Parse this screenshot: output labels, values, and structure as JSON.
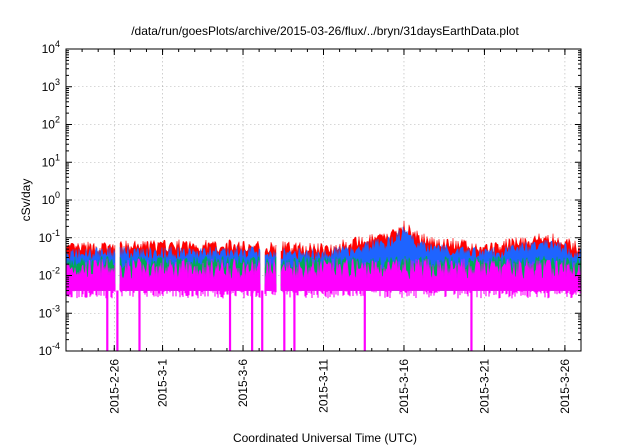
{
  "chart_data": {
    "type": "area",
    "title": "/data/run/goesPlots/archive/2015-03-26/flux/../bryn/31daysEarthData.plot",
    "xlabel": "Coordinated Universal Time (UTC)",
    "ylabel": "cSv/day",
    "y_scale": "log",
    "ylim": [
      0.0001,
      10000
    ],
    "xlim": [
      "2015-02-23",
      "2015-03-27"
    ],
    "grid": true,
    "y_ticks": [
      {
        "base": "10",
        "exp": "-4"
      },
      {
        "base": "10",
        "exp": "-3"
      },
      {
        "base": "10",
        "exp": "-2"
      },
      {
        "base": "10",
        "exp": "-1"
      },
      {
        "base": "10",
        "exp": "0"
      },
      {
        "base": "10",
        "exp": "1"
      },
      {
        "base": "10",
        "exp": "2"
      },
      {
        "base": "10",
        "exp": "3"
      },
      {
        "base": "10",
        "exp": "4"
      }
    ],
    "x_ticks": [
      "2015-2-26",
      "2015-3-1",
      "2015-3-6",
      "2015-3-11",
      "2015-3-16",
      "2015-3-21",
      "2015-3-26"
    ],
    "series_colors": [
      "#ff0000",
      "#1e64ff",
      "#00aa55",
      "#ff00ff"
    ],
    "series": [
      {
        "color": "#ff0000",
        "typical": 0.05,
        "x": [
          "2015-02-23",
          "2015-02-26",
          "2015-03-01",
          "2015-03-06",
          "2015-03-11",
          "2015-03-15",
          "2015-03-16",
          "2015-03-17",
          "2015-03-21",
          "2015-03-25",
          "2015-03-27"
        ],
        "values": [
          0.05,
          0.055,
          0.06,
          0.06,
          0.05,
          0.1,
          0.2,
          0.09,
          0.05,
          0.1,
          0.05
        ]
      },
      {
        "color": "#1e64ff",
        "typical": 0.035,
        "x": [
          "2015-02-23",
          "2015-02-26",
          "2015-03-01",
          "2015-03-06",
          "2015-03-11",
          "2015-03-15",
          "2015-03-16",
          "2015-03-17",
          "2015-03-21",
          "2015-03-25",
          "2015-03-27"
        ],
        "values": [
          0.035,
          0.04,
          0.04,
          0.04,
          0.035,
          0.07,
          0.14,
          0.06,
          0.035,
          0.07,
          0.035
        ]
      },
      {
        "color": "#00aa55",
        "typical": 0.022,
        "x": [
          "2015-02-23",
          "2015-03-27"
        ],
        "values": [
          0.022,
          0.022
        ]
      },
      {
        "color": "#ff00ff",
        "typical": 0.015,
        "x": [
          "2015-02-23",
          "2015-03-27"
        ],
        "values": [
          0.015,
          0.015
        ]
      }
    ],
    "magenta_floor": 0.004,
    "data_gaps": [
      "2015-02-26",
      "2015-03-07",
      "2015-03-08"
    ],
    "magenta_dropouts": [
      "2015-02-25",
      "2015-02-26",
      "2015-02-27",
      "2015-03-05",
      "2015-03-06",
      "2015-03-07",
      "2015-03-08",
      "2015-03-09",
      "2015-03-13",
      "2015-03-20"
    ]
  }
}
